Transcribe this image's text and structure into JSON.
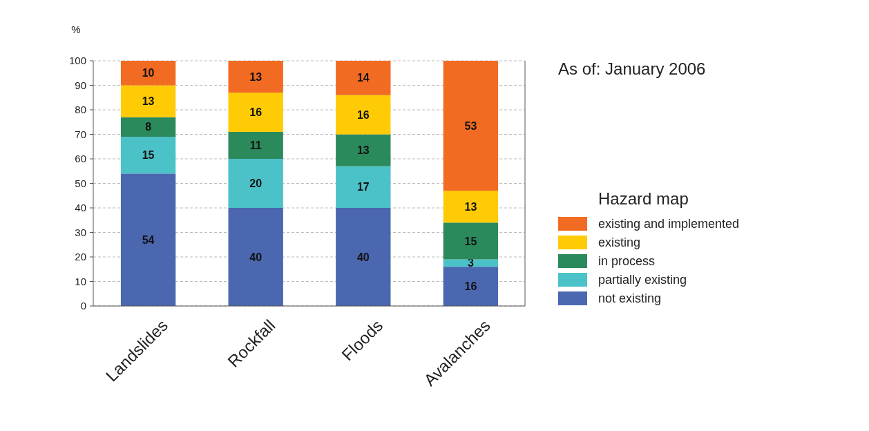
{
  "chart_data": {
    "type": "bar",
    "stacked": true,
    "ylabel": "%",
    "legend_title": "Hazard map",
    "annotations": [
      "As of: January 2006"
    ],
    "categories": [
      "Landslides",
      "Rockfall",
      "Floods",
      "Avalanches"
    ],
    "series": [
      {
        "name": "not existing",
        "color": "#4a67b0",
        "values": [
          54,
          40,
          40,
          16
        ]
      },
      {
        "name": "partially existing",
        "color": "#4bc2c8",
        "values": [
          15,
          20,
          17,
          3
        ]
      },
      {
        "name": "in process",
        "color": "#2b8a5c",
        "values": [
          8,
          11,
          13,
          15
        ]
      },
      {
        "name": "existing",
        "color": "#ffcb05",
        "values": [
          13,
          16,
          16,
          13
        ]
      },
      {
        "name": "existing and implemented",
        "color": "#f26b22",
        "values": [
          10,
          13,
          14,
          53
        ]
      }
    ],
    "ylim": [
      0,
      100
    ],
    "yticks": [
      0,
      10,
      20,
      30,
      40,
      50,
      60,
      70,
      80,
      90,
      100
    ],
    "grid": "y",
    "legend": "right",
    "data_labels": true
  }
}
